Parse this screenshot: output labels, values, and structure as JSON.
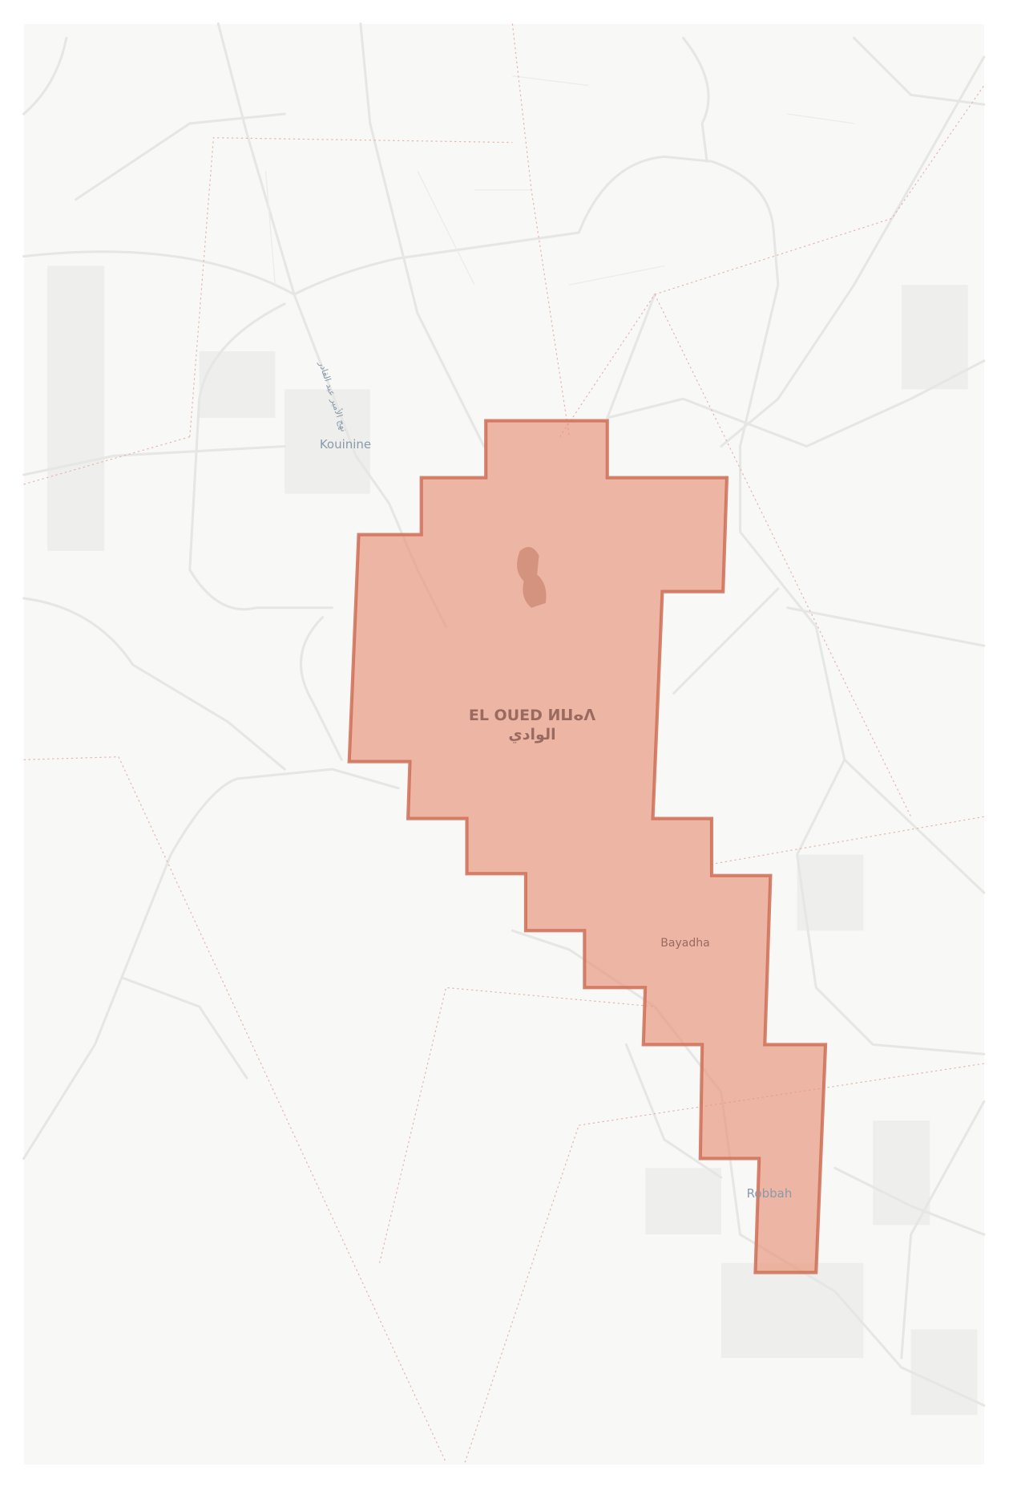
{
  "map": {
    "labels": {
      "city_latin": "EL OUED ⵍⵡⴰⴷ",
      "city_arabic": "الوادي",
      "kouinine": "Kouinine",
      "bayadha": "Bayadha",
      "robbah": "Robbah",
      "road_name": "نهج الأمير عبد القادر"
    },
    "colors": {
      "background": "#f8f8f7",
      "area_fill": "#e8957b",
      "area_stroke": "#cf6e56",
      "road": "#e6e6e4",
      "boundary": "#e4b5ad",
      "place_label": "#8a9aab",
      "city_label": "#9a6a60"
    },
    "highlighted_area": "El Oued urban area"
  }
}
